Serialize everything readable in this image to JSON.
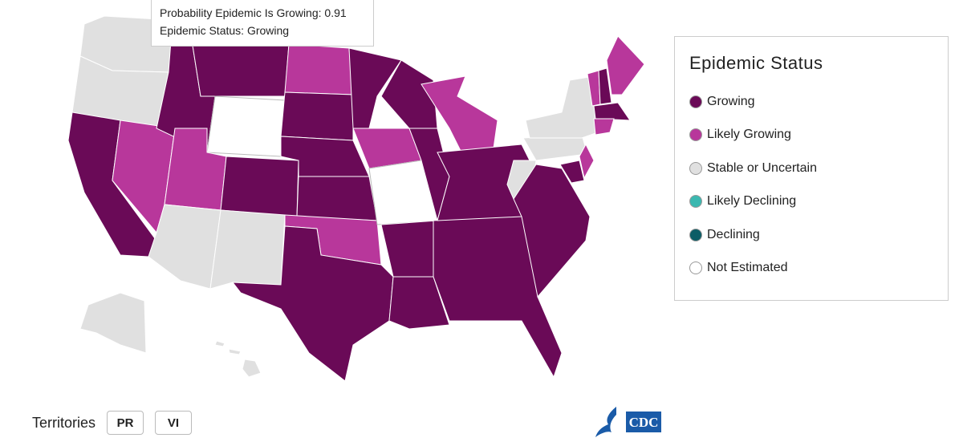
{
  "tooltip": {
    "probability": "Probability Epidemic Is Growing: 0.91",
    "status": "Epidemic Status: Growing"
  },
  "legend": {
    "title": "Epidemic Status",
    "items": [
      {
        "label": "Growing",
        "color": "#6a0a57"
      },
      {
        "label": "Likely Growing",
        "color": "#b8379b"
      },
      {
        "label": "Stable or Uncertain",
        "color": "#e0e0e0"
      },
      {
        "label": "Likely Declining",
        "color": "#3bb8b0"
      },
      {
        "label": "Declining",
        "color": "#0c5d66"
      },
      {
        "label": "Not Estimated",
        "color": "#ffffff"
      }
    ]
  },
  "territories": {
    "label": "Territories",
    "buttons": [
      "PR",
      "VI"
    ]
  },
  "logo": "CDC"
}
